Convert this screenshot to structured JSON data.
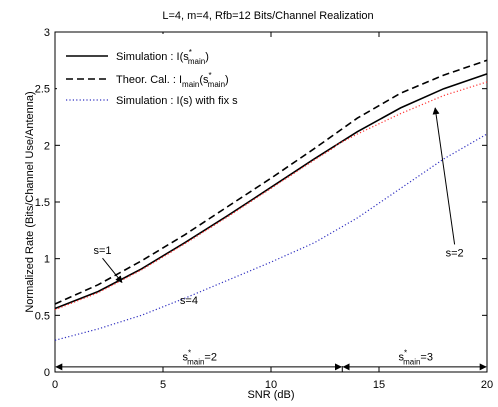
{
  "chart_data": {
    "type": "line",
    "title": "L=4, m=4, Rfb=12 Bits/Channel Realization",
    "xlabel": "SNR (dB)",
    "ylabel": "Normalized Rate (Bits/Channel Use/Antenna)",
    "xlim": [
      0,
      20
    ],
    "ylim": [
      0,
      3
    ],
    "x_ticks": [
      0,
      5,
      10,
      15,
      20
    ],
    "y_ticks": [
      0,
      0.5,
      1,
      1.5,
      2,
      2.5,
      3
    ],
    "x_tick_labels": [
      "0",
      "5",
      "10",
      "15",
      "20"
    ],
    "y_tick_labels": [
      "0",
      "0.5",
      "1",
      "1.5",
      "2",
      "2.5",
      "3"
    ],
    "grid": false,
    "legend_position": "top-left",
    "legend": [
      {
        "text": "Simulation : I(s",
        "sup": "*",
        "sub": "main",
        "tail": ")",
        "style": "solid",
        "color": "#000000"
      },
      {
        "text": "Theor. Cal. : I",
        "sub1": "main",
        "mid": "(s",
        "sup": "*",
        "sub": "main",
        "tail": ")",
        "style": "dashed",
        "color": "#000000"
      },
      {
        "text": "Simulation : I(s) with fix s",
        "style": "dotted",
        "color": "#3030c0"
      }
    ],
    "series": [
      {
        "role": "simulation",
        "style": "solid",
        "color": "#000000",
        "x": [
          0,
          2,
          4,
          6,
          8,
          10,
          12,
          14,
          16,
          18,
          20
        ],
        "y": [
          0.56,
          0.71,
          0.91,
          1.14,
          1.38,
          1.63,
          1.88,
          2.12,
          2.33,
          2.5,
          2.63
        ]
      },
      {
        "role": "theoretical",
        "style": "dashed",
        "color": "#000000",
        "x": [
          0,
          2,
          4,
          6,
          8,
          10,
          12,
          14,
          16,
          18,
          20
        ],
        "y": [
          0.6,
          0.77,
          0.98,
          1.21,
          1.46,
          1.71,
          1.97,
          2.24,
          2.46,
          2.62,
          2.75
        ]
      },
      {
        "role": "fixed-s1",
        "style": "dotted",
        "color": "#ff3030",
        "x": [
          0,
          2,
          4,
          6,
          8,
          10,
          12,
          13
        ],
        "y": [
          0.55,
          0.7,
          0.9,
          1.13,
          1.37,
          1.62,
          1.87,
          1.99
        ]
      },
      {
        "role": "fixed-s2",
        "style": "dotted",
        "color": "#ff3030",
        "x": [
          13,
          14,
          16,
          18,
          20
        ],
        "y": [
          2.0,
          2.1,
          2.28,
          2.44,
          2.56
        ]
      },
      {
        "role": "fixed-s4",
        "style": "dotted",
        "color": "#3030c0",
        "x": [
          0,
          2,
          4,
          6,
          8,
          10,
          12,
          14,
          16,
          18,
          20
        ],
        "y": [
          0.28,
          0.38,
          0.5,
          0.65,
          0.81,
          0.97,
          1.14,
          1.36,
          1.62,
          1.88,
          2.1
        ]
      }
    ],
    "annotations": {
      "s1": {
        "label": "s=1",
        "x": 2.2,
        "y": 1.04,
        "arrow_to": [
          3.1,
          0.79
        ]
      },
      "s4": {
        "label": "s=4",
        "x": 6.2,
        "y": 0.6
      },
      "s2": {
        "label": "s=2",
        "x": 18.5,
        "y": 1.02,
        "arrow_to": [
          17.6,
          2.33
        ]
      },
      "region1": {
        "label": "s",
        "sup": "*",
        "sub": "main",
        "tail": "=2",
        "x": 6.7,
        "y": 0.1,
        "from": 0,
        "to": 13.3
      },
      "region2": {
        "label": "s",
        "sup": "*",
        "sub": "main",
        "tail": "=3",
        "x": 16.7,
        "y": 0.1,
        "from": 13.3,
        "to": 20
      }
    }
  }
}
